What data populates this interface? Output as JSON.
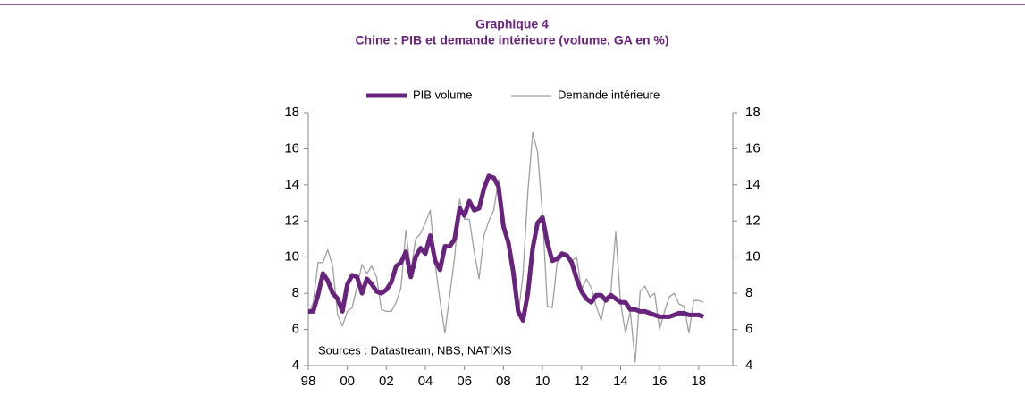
{
  "chart_data": {
    "type": "line",
    "title": "Graphique 4",
    "subtitle": "Chine : PIB et demande intérieure (volume, GA en %)",
    "annotation": "Sources : Datastream, NBS, NATIXIS",
    "x": [
      1998,
      1998.25,
      1998.5,
      1998.75,
      1999,
      1999.25,
      1999.5,
      1999.75,
      2000,
      2000.25,
      2000.5,
      2000.75,
      2001,
      2001.25,
      2001.5,
      2001.75,
      2002,
      2002.25,
      2002.5,
      2002.75,
      2003,
      2003.25,
      2003.5,
      2003.75,
      2004,
      2004.25,
      2004.5,
      2004.75,
      2005,
      2005.25,
      2005.5,
      2005.75,
      2006,
      2006.25,
      2006.5,
      2006.75,
      2007,
      2007.25,
      2007.5,
      2007.75,
      2008,
      2008.25,
      2008.5,
      2008.75,
      2009,
      2009.25,
      2009.5,
      2009.75,
      2010,
      2010.25,
      2010.5,
      2010.75,
      2011,
      2011.25,
      2011.5,
      2011.75,
      2012,
      2012.25,
      2012.5,
      2012.75,
      2013,
      2013.25,
      2013.5,
      2013.75,
      2014,
      2014.25,
      2014.5,
      2014.75,
      2015,
      2015.25,
      2015.5,
      2015.75,
      2016,
      2016.25,
      2016.5,
      2016.75,
      2017,
      2017.25,
      2017.5,
      2017.75,
      2018,
      2018.25
    ],
    "series": [
      {
        "name": "PIB volume",
        "color": "#68237d",
        "values": [
          7.0,
          7.0,
          7.9,
          9.1,
          8.7,
          8.0,
          7.7,
          7.0,
          8.5,
          9.0,
          8.9,
          8.0,
          8.8,
          8.5,
          8.1,
          8.0,
          8.2,
          8.6,
          9.5,
          9.7,
          10.3,
          8.9,
          10.0,
          10.5,
          10.2,
          11.2,
          9.8,
          9.3,
          10.6,
          10.6,
          11.0,
          12.7,
          12.3,
          13.1,
          12.6,
          12.7,
          13.8,
          14.5,
          14.4,
          13.9,
          11.7,
          10.8,
          9.2,
          7.0,
          6.5,
          8.0,
          10.5,
          11.9,
          12.2,
          10.8,
          9.8,
          9.9,
          10.2,
          10.1,
          9.7,
          8.8,
          8.1,
          7.7,
          7.5,
          7.9,
          7.9,
          7.6,
          7.9,
          7.7,
          7.5,
          7.5,
          7.1,
          7.1,
          7.0,
          7.0,
          6.9,
          6.8,
          6.7,
          6.7,
          6.7,
          6.8,
          6.9,
          6.9,
          6.8,
          6.8,
          6.8,
          6.7
        ]
      },
      {
        "name": "Demande intérieure",
        "color": "#a0a0a0",
        "values": [
          6.8,
          7.5,
          9.7,
          9.7,
          10.4,
          9.5,
          6.8,
          6.2,
          7.0,
          7.2,
          8.4,
          9.6,
          9.1,
          9.5,
          8.9,
          7.1,
          7.0,
          7.0,
          7.5,
          8.3,
          11.5,
          9.2,
          11.0,
          11.3,
          11.9,
          12.6,
          9.6,
          7.6,
          5.8,
          7.9,
          10.0,
          13.2,
          12.1,
          12.1,
          10.3,
          8.8,
          11.2,
          12.0,
          12.6,
          14.3,
          12.1,
          11.0,
          9.3,
          6.8,
          9.0,
          13.6,
          16.9,
          15.8,
          12.3,
          7.3,
          7.2,
          9.7,
          10.0,
          10.2,
          9.8,
          10.0,
          8.2,
          8.8,
          8.3,
          7.3,
          6.5,
          7.8,
          8.0,
          11.4,
          7.5,
          5.8,
          7.0,
          4.2,
          8.1,
          8.4,
          7.8,
          8.0,
          6.0,
          7.0,
          7.8,
          8.0,
          7.4,
          7.3,
          5.8,
          7.6,
          7.6,
          7.5
        ]
      }
    ],
    "xlim": [
      1998,
      2019.75
    ],
    "xticks": [
      {
        "value": 1998,
        "label": "98"
      },
      {
        "value": 2000,
        "label": "00"
      },
      {
        "value": 2002,
        "label": "02"
      },
      {
        "value": 2004,
        "label": "04"
      },
      {
        "value": 2006,
        "label": "06"
      },
      {
        "value": 2008,
        "label": "08"
      },
      {
        "value": 2010,
        "label": "10"
      },
      {
        "value": 2012,
        "label": "12"
      },
      {
        "value": 2014,
        "label": "14"
      },
      {
        "value": 2016,
        "label": "16"
      },
      {
        "value": 2018,
        "label": "18"
      }
    ],
    "ylim": [
      4,
      18
    ],
    "yticks": [
      4,
      6,
      8,
      10,
      12,
      14,
      16,
      18
    ],
    "y2lim": [
      4,
      18
    ],
    "y2ticks": [
      4,
      6,
      8,
      10,
      12,
      14,
      16,
      18
    ]
  }
}
